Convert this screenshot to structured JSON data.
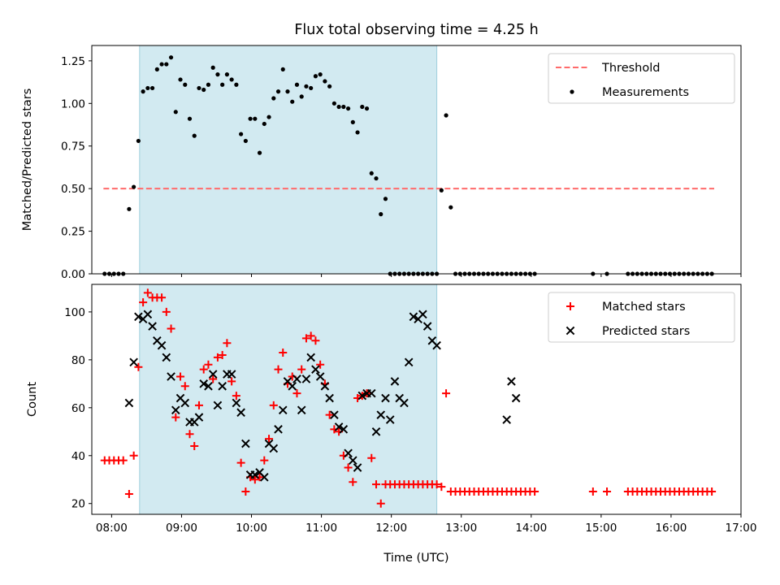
{
  "chart_data": [
    {
      "type": "scatter",
      "title": "Flux total observing time = 4.25 h",
      "xlabel": "",
      "ylabel": "Matched/Predicted stars",
      "xlim": [
        "07:43",
        "17:00"
      ],
      "ylim": [
        0,
        1.34
      ],
      "yticks": [
        0.0,
        0.25,
        0.5,
        0.75,
        1.0,
        1.25
      ],
      "yticklabels": [
        "0.00",
        "0.25",
        "0.50",
        "0.75",
        "1.00",
        "1.25"
      ],
      "xticks": [
        "08:00",
        "09:00",
        "10:00",
        "11:00",
        "12:00",
        "13:00",
        "14:00",
        "15:00",
        "16:00",
        "17:00"
      ],
      "shaded_span": [
        "08:24",
        "12:39"
      ],
      "shaded_color": "#add8e6",
      "legend": {
        "position": "upper right",
        "entries": [
          "Threshold",
          "Measurements"
        ]
      },
      "threshold": {
        "name": "Threshold",
        "value": 0.5,
        "x_range": [
          "07:53",
          "16:37"
        ],
        "color": "#ff6b6b",
        "style": "dashed"
      },
      "series": [
        {
          "name": "Measurements",
          "marker": "dot",
          "color": "#000000",
          "x": [
            "07:54",
            "07:58",
            "08:02",
            "08:06",
            "08:10",
            "08:15",
            "08:19",
            "08:23",
            "08:27",
            "08:31",
            "08:35",
            "08:39",
            "08:43",
            "08:47",
            "08:51",
            "08:55",
            "08:59",
            "09:03",
            "09:07",
            "09:11",
            "09:15",
            "09:19",
            "09:23",
            "09:27",
            "09:31",
            "09:35",
            "09:39",
            "09:43",
            "09:47",
            "09:51",
            "09:55",
            "09:59",
            "10:03",
            "10:07",
            "10:11",
            "10:15",
            "10:19",
            "10:23",
            "10:27",
            "10:31",
            "10:35",
            "10:39",
            "10:43",
            "10:47",
            "10:51",
            "10:55",
            "10:59",
            "11:03",
            "11:07",
            "11:11",
            "11:15",
            "11:19",
            "11:23",
            "11:27",
            "11:31",
            "11:35",
            "11:39",
            "11:43",
            "11:47",
            "11:51",
            "11:55",
            "11:59",
            "12:03",
            "12:07",
            "12:11",
            "12:15",
            "12:19",
            "12:23",
            "12:27",
            "12:31",
            "12:35",
            "12:39",
            "12:43",
            "12:47",
            "12:51",
            "12:55",
            "12:59",
            "13:03",
            "13:07",
            "13:11",
            "13:15",
            "13:19",
            "13:23",
            "13:27",
            "13:31",
            "13:35",
            "13:39",
            "13:43",
            "13:47",
            "13:51",
            "13:55",
            "13:59",
            "14:03",
            "14:53",
            "15:05",
            "15:23",
            "15:27",
            "15:31",
            "15:35",
            "15:39",
            "15:43",
            "15:47",
            "15:51",
            "15:55",
            "15:59",
            "16:03",
            "16:07",
            "16:11",
            "16:15",
            "16:19",
            "16:23",
            "16:27",
            "16:31",
            "16:35"
          ],
          "y": [
            0,
            0,
            0,
            0,
            0,
            0.38,
            0.51,
            0.78,
            1.07,
            1.09,
            1.09,
            1.2,
            1.23,
            1.23,
            1.27,
            0.95,
            1.14,
            1.11,
            0.91,
            0.81,
            1.09,
            1.08,
            1.11,
            1.21,
            1.17,
            1.11,
            1.17,
            1.14,
            1.11,
            0.82,
            0.78,
            0.91,
            0.91,
            0.71,
            0.88,
            0.92,
            1.03,
            1.07,
            1.2,
            1.07,
            1.01,
            1.11,
            1.04,
            1.1,
            1.09,
            1.16,
            1.17,
            1.13,
            1.1,
            1.0,
            0.98,
            0.98,
            0.97,
            0.89,
            0.83,
            0.98,
            0.97,
            0.59,
            0.56,
            0.35,
            0.44,
            0,
            0,
            0,
            0,
            0,
            0,
            0,
            0,
            0,
            0,
            0,
            0.49,
            0.93,
            0.39,
            0,
            0,
            0,
            0,
            0,
            0,
            0,
            0,
            0,
            0,
            0,
            0,
            0,
            0,
            0,
            0,
            0,
            0,
            0,
            0,
            0,
            0,
            0,
            0,
            0,
            0,
            0,
            0,
            0,
            0,
            0,
            0,
            0,
            0,
            0,
            0,
            0,
            0,
            0
          ]
        }
      ]
    },
    {
      "type": "scatter",
      "title": "",
      "xlabel": "Time (UTC)",
      "ylabel": "Count",
      "xlim": [
        "07:43",
        "17:00"
      ],
      "ylim": [
        15.5,
        111.5
      ],
      "yticks": [
        20,
        40,
        60,
        80,
        100
      ],
      "yticklabels": [
        "20",
        "40",
        "60",
        "80",
        "100"
      ],
      "xticks": [
        "08:00",
        "09:00",
        "10:00",
        "11:00",
        "12:00",
        "13:00",
        "14:00",
        "15:00",
        "16:00",
        "17:00"
      ],
      "xticklabels": [
        "08:00",
        "09:00",
        "10:00",
        "11:00",
        "12:00",
        "13:00",
        "14:00",
        "15:00",
        "16:00",
        "17:00"
      ],
      "shaded_span": [
        "08:24",
        "12:39"
      ],
      "shaded_color": "#add8e6",
      "legend": {
        "position": "upper right",
        "entries": [
          "Matched stars",
          "Predicted stars"
        ]
      },
      "series": [
        {
          "name": "Matched stars",
          "marker": "plus",
          "color": "#ff0000",
          "x": [
            "07:54",
            "07:58",
            "08:02",
            "08:06",
            "08:10",
            "08:15",
            "08:19",
            "08:23",
            "08:27",
            "08:31",
            "08:35",
            "08:39",
            "08:43",
            "08:47",
            "08:51",
            "08:55",
            "08:59",
            "09:03",
            "09:07",
            "09:11",
            "09:15",
            "09:19",
            "09:23",
            "09:27",
            "09:31",
            "09:35",
            "09:39",
            "09:43",
            "09:47",
            "09:51",
            "09:55",
            "09:59",
            "10:03",
            "10:07",
            "10:11",
            "10:15",
            "10:19",
            "10:23",
            "10:27",
            "10:31",
            "10:35",
            "10:39",
            "10:43",
            "10:47",
            "10:51",
            "10:55",
            "10:59",
            "11:03",
            "11:07",
            "11:11",
            "11:15",
            "11:19",
            "11:23",
            "11:27",
            "11:31",
            "11:35",
            "11:39",
            "11:43",
            "11:47",
            "11:51",
            "11:55",
            "11:59",
            "12:03",
            "12:07",
            "12:11",
            "12:15",
            "12:19",
            "12:23",
            "12:27",
            "12:31",
            "12:35",
            "12:39",
            "12:43",
            "12:47",
            "12:51",
            "12:55",
            "12:59",
            "13:03",
            "13:07",
            "13:11",
            "13:15",
            "13:19",
            "13:23",
            "13:27",
            "13:31",
            "13:35",
            "13:39",
            "13:43",
            "13:47",
            "13:51",
            "13:55",
            "13:59",
            "14:03",
            "14:53",
            "15:05",
            "15:23",
            "15:27",
            "15:31",
            "15:35",
            "15:39",
            "15:43",
            "15:47",
            "15:51",
            "15:55",
            "15:59",
            "16:03",
            "16:07",
            "16:11",
            "16:15",
            "16:19",
            "16:23",
            "16:27",
            "16:31",
            "16:35"
          ],
          "y": [
            38,
            38,
            38,
            38,
            38,
            24,
            40,
            77,
            104,
            108,
            106,
            106,
            106,
            100,
            93,
            56,
            73,
            69,
            49,
            44,
            61,
            76,
            78,
            72,
            81,
            82,
            87,
            71,
            65,
            37,
            25,
            31,
            30,
            31,
            38,
            47,
            61,
            76,
            83,
            70,
            73,
            66,
            76,
            89,
            90,
            88,
            78,
            70,
            57,
            51,
            50,
            40,
            35,
            29,
            64,
            65,
            66,
            39,
            28,
            20,
            28,
            28,
            28,
            28,
            28,
            28,
            28,
            28,
            28,
            28,
            28,
            28,
            27,
            66,
            25,
            25,
            25,
            25,
            25,
            25,
            25,
            25,
            25,
            25,
            25,
            25,
            25,
            25,
            25,
            25,
            25,
            25,
            25,
            25,
            25,
            25,
            25,
            25,
            25,
            25,
            25,
            25,
            25,
            25,
            25,
            25,
            25,
            25,
            25,
            25,
            25,
            25,
            25,
            25
          ]
        },
        {
          "name": "Predicted stars",
          "marker": "x",
          "color": "#000000",
          "x": [
            "08:15",
            "08:19",
            "08:23",
            "08:27",
            "08:31",
            "08:35",
            "08:39",
            "08:43",
            "08:47",
            "08:51",
            "08:55",
            "08:59",
            "09:03",
            "09:07",
            "09:11",
            "09:15",
            "09:19",
            "09:23",
            "09:27",
            "09:31",
            "09:35",
            "09:39",
            "09:43",
            "09:47",
            "09:51",
            "09:55",
            "09:59",
            "10:03",
            "10:07",
            "10:11",
            "10:15",
            "10:19",
            "10:23",
            "10:27",
            "10:31",
            "10:35",
            "10:39",
            "10:43",
            "10:47",
            "10:51",
            "10:55",
            "10:59",
            "11:03",
            "11:07",
            "11:11",
            "11:15",
            "11:19",
            "11:23",
            "11:27",
            "11:31",
            "11:35",
            "11:39",
            "11:43",
            "11:47",
            "11:51",
            "11:55",
            "11:59",
            "12:03",
            "12:07",
            "12:11",
            "12:15",
            "12:19",
            "12:23",
            "12:27",
            "12:31",
            "12:35",
            "12:39",
            "13:39",
            "13:43",
            "13:47"
          ],
          "y": [
            62,
            79,
            98,
            97,
            99,
            94,
            88,
            86,
            81,
            73,
            59,
            64,
            62,
            54,
            54,
            56,
            70,
            69,
            74,
            61,
            69,
            74,
            74,
            62,
            58,
            45,
            32,
            32,
            33,
            31,
            45,
            43,
            51,
            59,
            71,
            69,
            72,
            59,
            72,
            81,
            76,
            73,
            69,
            64,
            57,
            52,
            51,
            41,
            38,
            35,
            65,
            66,
            66,
            50,
            57,
            64,
            55,
            71,
            64,
            62,
            79,
            98,
            97,
            99,
            94,
            88,
            86,
            55,
            71,
            64
          ]
        }
      ]
    }
  ]
}
